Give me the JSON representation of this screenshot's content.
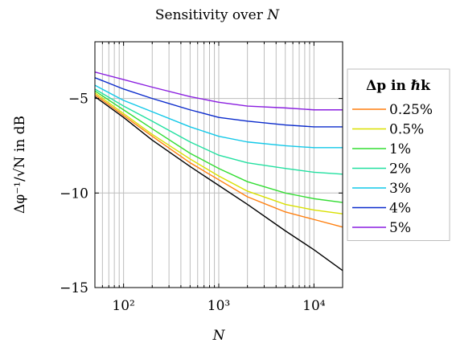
{
  "chart_data": {
    "type": "line",
    "title": "Sensitivity over N",
    "xlabel": "N",
    "ylabel": "Δφ⁻¹/√N in dB",
    "x_scale": "log",
    "xlim": [
      50,
      20000
    ],
    "ylim": [
      -15,
      -2
    ],
    "x_ticks": [
      100,
      1000,
      10000
    ],
    "x_tick_labels": [
      "10²",
      "10³",
      "10⁴"
    ],
    "y_ticks": [
      -15,
      -10,
      -5
    ],
    "y_tick_labels": [
      "−15",
      "−10",
      "−5"
    ],
    "grid": true,
    "legend_title": "Δp in ℏk",
    "legend_position": "right",
    "x": [
      50,
      100,
      200,
      500,
      1000,
      2000,
      5000,
      10000,
      20000
    ],
    "series": [
      {
        "color": "#000000",
        "values": [
          -4.9,
          -6.0,
          -7.2,
          -8.6,
          -9.6,
          -10.6,
          -12.0,
          -13.0,
          -14.1
        ]
      },
      {
        "name": "0.25%",
        "color": "#ff7f0e",
        "values": [
          -4.8,
          -5.9,
          -7.0,
          -8.4,
          -9.3,
          -10.2,
          -11.0,
          -11.4,
          -11.8
        ]
      },
      {
        "name": "0.5%",
        "color": "#d9e000",
        "values": [
          -4.7,
          -5.8,
          -6.9,
          -8.2,
          -9.1,
          -9.9,
          -10.6,
          -10.9,
          -11.1
        ]
      },
      {
        "name": "1%",
        "color": "#33dd33",
        "values": [
          -4.6,
          -5.6,
          -6.6,
          -7.9,
          -8.7,
          -9.4,
          -10.0,
          -10.3,
          -10.5
        ]
      },
      {
        "name": "2%",
        "color": "#22e0a0",
        "values": [
          -4.5,
          -5.4,
          -6.2,
          -7.3,
          -8.0,
          -8.4,
          -8.7,
          -8.9,
          -9.0
        ]
      },
      {
        "name": "3%",
        "color": "#11c8e8",
        "values": [
          -4.3,
          -5.1,
          -5.7,
          -6.5,
          -7.0,
          -7.3,
          -7.5,
          -7.6,
          -7.6
        ]
      },
      {
        "name": "4%",
        "color": "#0a2acc",
        "values": [
          -3.9,
          -4.5,
          -5.0,
          -5.6,
          -6.0,
          -6.2,
          -6.4,
          -6.5,
          -6.5
        ]
      },
      {
        "name": "5%",
        "color": "#8a1ee0",
        "values": [
          -3.6,
          -4.0,
          -4.4,
          -4.9,
          -5.2,
          -5.4,
          -5.5,
          -5.6,
          -5.6
        ]
      }
    ]
  }
}
